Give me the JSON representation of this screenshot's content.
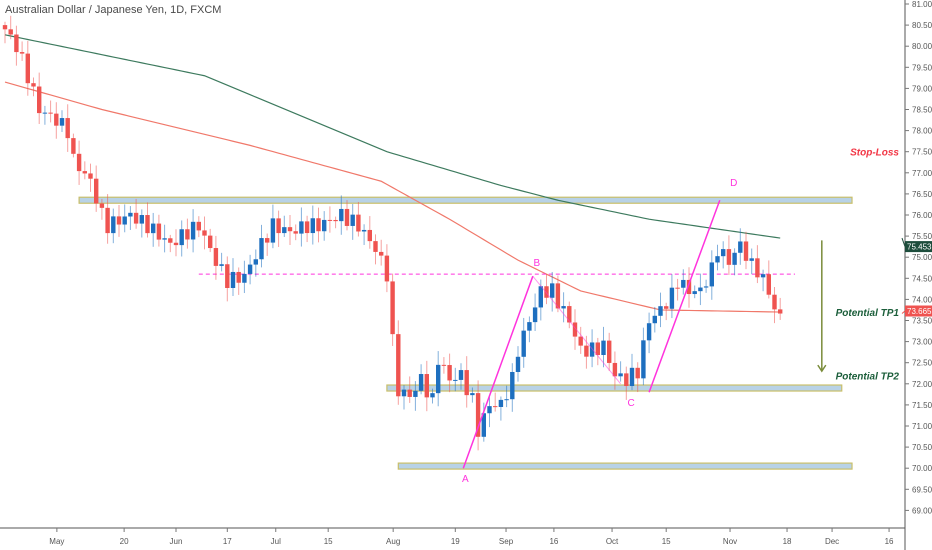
{
  "header": {
    "title": "Australian Dollar / Japanese Yen, 1D, FXCM"
  },
  "colors": {
    "up": "#1e6fbf",
    "down": "#ef5350",
    "ma_long": "#3d7a5e",
    "ma_short": "#f0786a",
    "pattern": "#ff33dd",
    "zone_fill": "#b8d2e6",
    "zone_border": "#c9bf6a",
    "arrow": "#7a8c3a",
    "stoploss": "#f23645",
    "target": "#1b5e3a"
  },
  "chart_data": {
    "type": "candlestick",
    "title": "Australian Dollar / Japanese Yen, 1D, FXCM",
    "ylim": [
      68.75,
      81.1
    ],
    "y_ticks": [
      "81.000",
      "80.500",
      "80.000",
      "79.500",
      "79.000",
      "78.500",
      "78.000",
      "77.500",
      "77.000",
      "76.500",
      "76.000",
      "75.500",
      "75.000",
      "74.500",
      "74.000",
      "73.500",
      "73.000",
      "72.500",
      "72.000",
      "71.500",
      "71.000",
      "70.500",
      "70.000",
      "69.500",
      "69.000"
    ],
    "x_ticks": [
      {
        "label": "May",
        "bar": 9.1
      },
      {
        "label": "20",
        "bar": 20.9
      },
      {
        "label": "Jun",
        "bar": 30
      },
      {
        "label": "17",
        "bar": 39
      },
      {
        "label": "Jul",
        "bar": 47.5
      },
      {
        "label": "15",
        "bar": 56.7
      },
      {
        "label": "Aug",
        "bar": 68.1
      },
      {
        "label": "19",
        "bar": 79
      },
      {
        "label": "Sep",
        "bar": 87.9
      },
      {
        "label": "16",
        "bar": 96.3
      },
      {
        "label": "Oct",
        "bar": 106.5
      },
      {
        "label": "15",
        "bar": 116
      },
      {
        "label": "Nov",
        "bar": 127.2
      },
      {
        "label": "18",
        "bar": 137.2
      },
      {
        "label": "Dec",
        "bar": 145.1
      },
      {
        "label": "16",
        "bar": 155.1
      }
    ],
    "close_path": [
      [
        0,
        80.4
      ],
      [
        2,
        80.0
      ],
      [
        4,
        79.3
      ],
      [
        6,
        78.5
      ],
      [
        9,
        78.25
      ],
      [
        11,
        78.0
      ],
      [
        12,
        77.3
      ],
      [
        15,
        76.8
      ],
      [
        17,
        76.0
      ],
      [
        18,
        75.75
      ],
      [
        22,
        76.0
      ],
      [
        25,
        75.75
      ],
      [
        29,
        75.3
      ],
      [
        32,
        75.6
      ],
      [
        34,
        75.75
      ],
      [
        37,
        74.9
      ],
      [
        39,
        74.45
      ],
      [
        42,
        74.55
      ],
      [
        45,
        75.3
      ],
      [
        47,
        75.75
      ],
      [
        50,
        75.6
      ],
      [
        53,
        75.75
      ],
      [
        55,
        75.75
      ],
      [
        59,
        76.0
      ],
      [
        62,
        75.75
      ],
      [
        65,
        75.2
      ],
      [
        67,
        74.6
      ],
      [
        68,
        73.0
      ],
      [
        69,
        71.85
      ],
      [
        71,
        71.7
      ],
      [
        73,
        72.1
      ],
      [
        75,
        71.6
      ],
      [
        76,
        72.6
      ],
      [
        78,
        72.1
      ],
      [
        80,
        72.2
      ],
      [
        82,
        71.6
      ],
      [
        83,
        70.9
      ],
      [
        85,
        71.5
      ],
      [
        87,
        71.5
      ],
      [
        89,
        72.1
      ],
      [
        90,
        72.8
      ],
      [
        92,
        73.5
      ],
      [
        94,
        74.2
      ],
      [
        96,
        74.2
      ],
      [
        97,
        73.95
      ],
      [
        99,
        73.5
      ],
      [
        101,
        72.8
      ],
      [
        103,
        72.8
      ],
      [
        105,
        72.9
      ],
      [
        107,
        72.2
      ],
      [
        109,
        72.1
      ],
      [
        111,
        72.3
      ],
      [
        113,
        73.5
      ],
      [
        115,
        73.75
      ],
      [
        117,
        74.1
      ],
      [
        118,
        74.45
      ],
      [
        120,
        74.2
      ],
      [
        122,
        74.2
      ],
      [
        124,
        74.7
      ],
      [
        125,
        75.2
      ],
      [
        127,
        74.9
      ],
      [
        129,
        75.3
      ],
      [
        131,
        74.8
      ],
      [
        132,
        74.7
      ],
      [
        134,
        74.2
      ],
      [
        135,
        73.75
      ],
      [
        136,
        73.665
      ]
    ],
    "series": [
      {
        "name": "MA long",
        "values": [
          [
            0,
            80.27
          ],
          [
            35,
            79.3
          ],
          [
            67,
            77.5
          ],
          [
            87,
            76.7
          ],
          [
            97,
            76.35
          ],
          [
            113,
            75.9
          ],
          [
            136,
            75.453
          ]
        ]
      },
      {
        "name": "MA short",
        "values": [
          [
            0,
            79.15
          ],
          [
            17,
            78.5
          ],
          [
            43,
            77.65
          ],
          [
            66,
            76.8
          ],
          [
            78,
            75.9
          ],
          [
            90,
            74.93
          ],
          [
            101,
            74.2
          ],
          [
            115,
            73.75
          ],
          [
            136,
            73.7
          ]
        ]
      }
    ],
    "last_price_badges": [
      {
        "value": "75.453",
        "price": 75.453,
        "kind": "ma"
      },
      {
        "value": "73.665",
        "price": 73.665,
        "kind": "price"
      }
    ],
    "zones": [
      {
        "price": 76.35,
        "from": 13,
        "to": 148.6
      },
      {
        "price": 71.9,
        "from": 67,
        "to": 146.8
      },
      {
        "price": 70.05,
        "from": 69,
        "to": 148.6
      }
    ],
    "dashed_level": {
      "price": 74.6,
      "from": 34,
      "to": 138.6
    },
    "pattern_points": [
      {
        "label": "A",
        "bar": 80.4,
        "price": 70.0
      },
      {
        "label": "B",
        "bar": 92.6,
        "price": 74.55
      },
      {
        "label": "C",
        "bar": 113,
        "price": 71.8
      },
      {
        "label": "D",
        "bar": 125.4,
        "price": 76.35
      }
    ],
    "bc_line": [
      [
        92.6,
        74.55
      ],
      [
        108,
        72.0
      ]
    ],
    "arrow": {
      "bar": 143.3,
      "from": 75.4,
      "to": 72.3
    },
    "annotations": [
      {
        "text": "Stop-Loss",
        "price": 77.5,
        "kind": "stoploss"
      },
      {
        "text": "Potential TP1",
        "price": 73.7,
        "kind": "target"
      },
      {
        "text": "Potential TP2",
        "price": 72.2,
        "kind": "target"
      }
    ]
  }
}
